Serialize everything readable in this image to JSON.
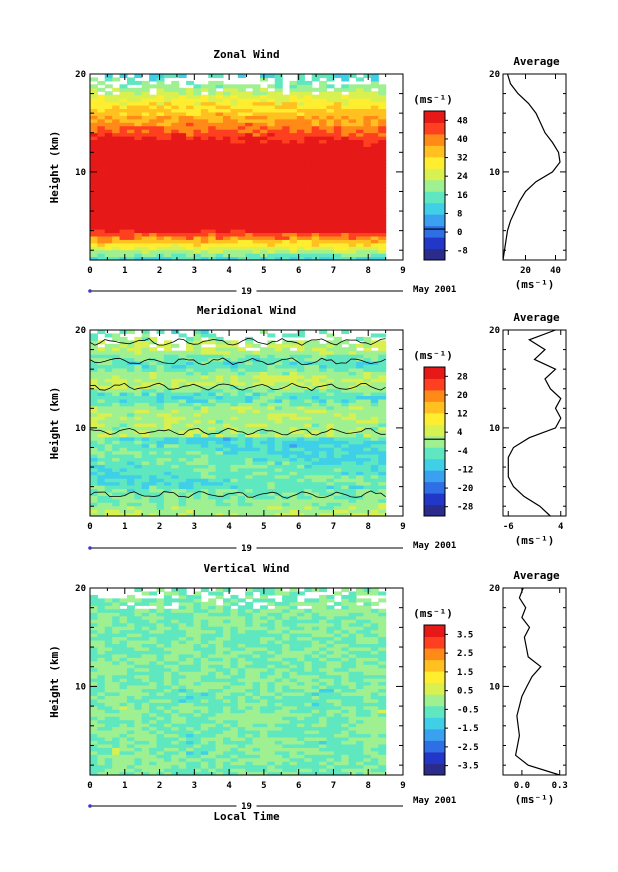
{
  "chart_data": [
    {
      "type": "heatmap",
      "title": "Zonal Wind",
      "ylabel": "Height (km)",
      "xlim": [
        0,
        9
      ],
      "ylim": [
        1,
        20
      ],
      "x_ticks": [
        "0",
        "1",
        "2",
        "3",
        "4",
        "5",
        "6",
        "7",
        "8",
        "9"
      ],
      "y_ticks": [
        "10",
        "20"
      ],
      "date_label": "19",
      "month_label": "May 2001",
      "colorbar": {
        "title": "(ms⁻¹)",
        "ticks": [
          "48",
          "40",
          "32",
          "24",
          "16",
          "8",
          "0",
          "-8"
        ],
        "zero_line": "0"
      },
      "data_x_extent": [
        0,
        8.5
      ],
      "profile": {
        "title": "Average",
        "xlabel": "(ms⁻¹)",
        "x_ticks": [
          "20",
          "40"
        ],
        "y_ticks": [
          "10",
          "20"
        ],
        "xlim": [
          5,
          47
        ],
        "ylim": [
          1,
          20
        ],
        "points": [
          [
            5,
            1
          ],
          [
            6,
            2
          ],
          [
            7,
            3
          ],
          [
            8,
            4
          ],
          [
            10,
            5
          ],
          [
            13,
            6
          ],
          [
            16,
            7
          ],
          [
            20,
            8
          ],
          [
            27,
            9
          ],
          [
            38,
            10
          ],
          [
            43,
            11
          ],
          [
            42,
            12
          ],
          [
            38,
            13
          ],
          [
            33,
            14
          ],
          [
            30,
            15
          ],
          [
            27,
            16
          ],
          [
            22,
            17
          ],
          [
            15,
            18
          ],
          [
            10,
            19
          ],
          [
            8,
            20
          ]
        ]
      }
    },
    {
      "type": "heatmap",
      "title": "Meridional Wind",
      "ylabel": "Height (km)",
      "xlim": [
        0,
        9
      ],
      "ylim": [
        1,
        20
      ],
      "x_ticks": [
        "0",
        "1",
        "2",
        "3",
        "4",
        "5",
        "6",
        "7",
        "8",
        "9"
      ],
      "y_ticks": [
        "10",
        "20"
      ],
      "date_label": "19",
      "month_label": "May 2001",
      "colorbar": {
        "title": "(ms⁻¹)",
        "ticks": [
          "28",
          "20",
          "12",
          "4",
          "-4",
          "-12",
          "-20",
          "-28"
        ],
        "zero_line": "0"
      },
      "data_x_extent": [
        0,
        8.5
      ],
      "profile": {
        "title": "Average",
        "xlabel": "(ms⁻¹)",
        "x_ticks": [
          "-6",
          "4"
        ],
        "y_ticks": [
          "10",
          "20"
        ],
        "xlim": [
          -7,
          5
        ],
        "ylim": [
          1,
          20
        ],
        "points": [
          [
            2,
            1
          ],
          [
            0,
            2
          ],
          [
            -3,
            3
          ],
          [
            -5,
            4
          ],
          [
            -6,
            5
          ],
          [
            -6,
            6
          ],
          [
            -6,
            7
          ],
          [
            -5,
            8
          ],
          [
            -2,
            9
          ],
          [
            3,
            10
          ],
          [
            4,
            11
          ],
          [
            3,
            12
          ],
          [
            4,
            13
          ],
          [
            2,
            14
          ],
          [
            1,
            15
          ],
          [
            3,
            16
          ],
          [
            -1,
            17
          ],
          [
            1,
            18
          ],
          [
            -2,
            19
          ],
          [
            3,
            20
          ]
        ]
      }
    },
    {
      "type": "heatmap",
      "title": "Vertical Wind",
      "ylabel": "Height (km)",
      "xlabel": "Local Time",
      "xlim": [
        0,
        9
      ],
      "ylim": [
        1,
        20
      ],
      "x_ticks": [
        "0",
        "1",
        "2",
        "3",
        "4",
        "5",
        "6",
        "7",
        "8",
        "9"
      ],
      "y_ticks": [
        "10",
        "20"
      ],
      "date_label": "19",
      "month_label": "May 2001",
      "colorbar": {
        "title": "(ms⁻¹)",
        "ticks": [
          "3.5",
          "2.5",
          "1.5",
          "0.5",
          "-0.5",
          "-1.5",
          "-2.5",
          "-3.5"
        ]
      },
      "data_x_extent": [
        0,
        8.5
      ],
      "profile": {
        "title": "Average",
        "xlabel": "(ms⁻¹)",
        "x_ticks": [
          "0.0",
          "0.3"
        ],
        "y_ticks": [
          "10",
          "20"
        ],
        "xlim": [
          -0.15,
          0.35
        ],
        "ylim": [
          1,
          20
        ],
        "points": [
          [
            0.3,
            1
          ],
          [
            0.05,
            2
          ],
          [
            -0.05,
            3
          ],
          [
            -0.02,
            5
          ],
          [
            -0.04,
            7
          ],
          [
            0.0,
            9
          ],
          [
            0.04,
            10
          ],
          [
            0.08,
            11
          ],
          [
            0.15,
            12
          ],
          [
            0.05,
            13
          ],
          [
            0.02,
            15
          ],
          [
            0.06,
            16
          ],
          [
            0.0,
            17
          ],
          [
            0.03,
            18
          ],
          [
            -0.02,
            19
          ],
          [
            0.01,
            20
          ]
        ]
      }
    }
  ],
  "colors": {
    "scale": [
      "#2b2b8c",
      "#2236c8",
      "#2f6fe6",
      "#3aa0f0",
      "#3fd0e8",
      "#5fe8c0",
      "#9ef090",
      "#d8f050",
      "#ffee30",
      "#ffc020",
      "#ff8a18",
      "#ff4020",
      "#e61818"
    ]
  }
}
